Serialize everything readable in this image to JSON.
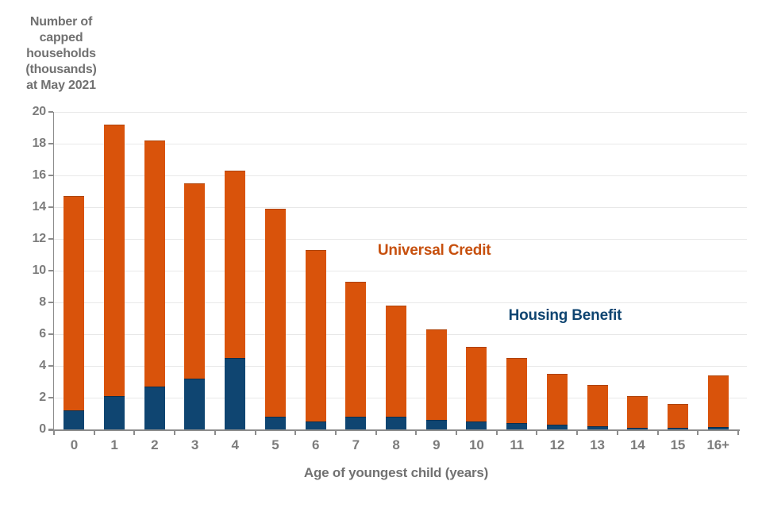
{
  "chart_data": {
    "type": "bar",
    "stacked": true,
    "ylabel_lines": [
      "Number of",
      "capped",
      "households",
      "(thousands)",
      "at May 2021"
    ],
    "xlabel": "Age of youngest child (years)",
    "categories": [
      "0",
      "1",
      "2",
      "3",
      "4",
      "5",
      "6",
      "7",
      "8",
      "9",
      "10",
      "11",
      "12",
      "13",
      "14",
      "15",
      "16+"
    ],
    "series": [
      {
        "name": "Housing Benefit",
        "color": "#0F4571",
        "edge_color": "#0A2F4F",
        "values": [
          1.2,
          2.1,
          2.7,
          3.2,
          4.5,
          0.8,
          0.5,
          0.8,
          0.8,
          0.6,
          0.5,
          0.4,
          0.3,
          0.2,
          0.1,
          0.1,
          0.15
        ]
      },
      {
        "name": "Universal Credit",
        "color": "#D9530B",
        "edge_color": "#AE4208",
        "values": [
          13.5,
          17.1,
          15.5,
          12.3,
          11.8,
          13.1,
          10.8,
          8.5,
          7.0,
          5.7,
          4.7,
          4.1,
          3.2,
          2.6,
          2.0,
          1.5,
          3.25
        ]
      }
    ],
    "totals": [
      14.7,
      19.2,
      18.2,
      15.5,
      16.3,
      13.9,
      11.3,
      9.3,
      7.8,
      6.3,
      5.2,
      4.5,
      3.5,
      2.8,
      2.1,
      1.6,
      3.4
    ],
    "ylim": [
      0,
      20
    ],
    "yticks": [
      0,
      2,
      4,
      6,
      8,
      10,
      12,
      14,
      16,
      18,
      20
    ],
    "grid": "horizontal",
    "legend_position": "in-plot-annotations",
    "annotations": [
      {
        "text": "Universal Credit",
        "color": "#C7500E",
        "x": 9.45,
        "y": 11.25
      },
      {
        "text": "Housing Benefit",
        "color": "#0F4571",
        "x": 12.7,
        "y": 7.15
      }
    ],
    "colors": {
      "gridline": "#E8E8E8",
      "axis": "#8C8C8C",
      "tick_label": "#7C7C7C",
      "axis_title": "#717171",
      "background": "#FFFFFF"
    }
  }
}
